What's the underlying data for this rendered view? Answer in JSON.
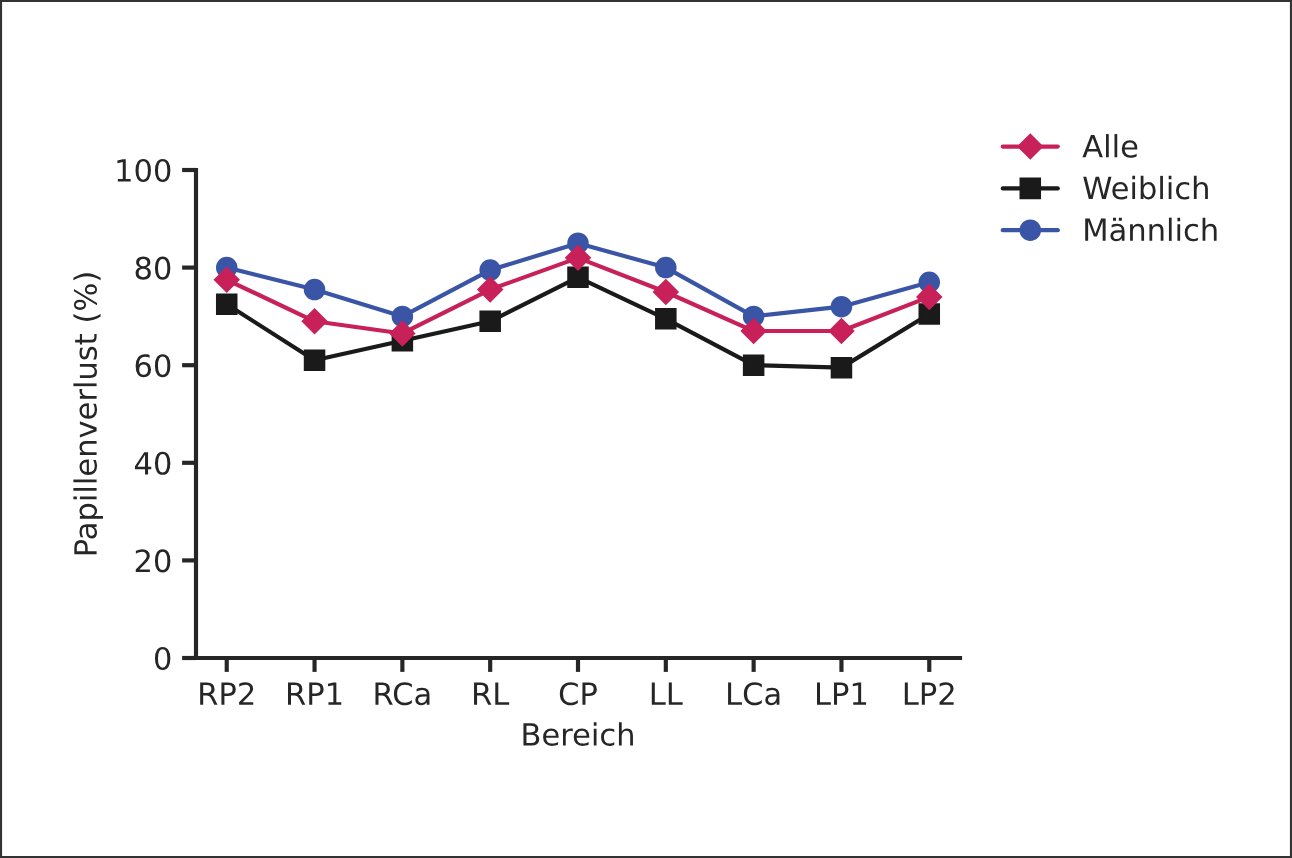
{
  "chart_data": {
    "type": "line",
    "xlabel": "Bereich",
    "ylabel": "Papillenverlust (%)",
    "categories": [
      "RP2",
      "RP1",
      "RCa",
      "RL",
      "CP",
      "LL",
      "LCa",
      "LP1",
      "LP2"
    ],
    "series": [
      {
        "name": "Alle",
        "color": "#c8215a",
        "marker": "diamond",
        "values": [
          77.5,
          69,
          66.5,
          75.5,
          82,
          75,
          67,
          67,
          74
        ]
      },
      {
        "name": "Weiblich",
        "color": "#1a1a1a",
        "marker": "square",
        "values": [
          72.5,
          61,
          65,
          69,
          78,
          69.5,
          60,
          59.5,
          70.5
        ]
      },
      {
        "name": "Männlich",
        "color": "#3a55a6",
        "marker": "circle",
        "values": [
          80,
          75.5,
          70,
          79.5,
          85,
          80,
          70,
          72,
          77
        ]
      }
    ],
    "ylim": [
      0,
      100
    ],
    "yticks": [
      0,
      20,
      40,
      60,
      80,
      100
    ],
    "grid": false,
    "legend": "top right",
    "line_style": "solid"
  }
}
